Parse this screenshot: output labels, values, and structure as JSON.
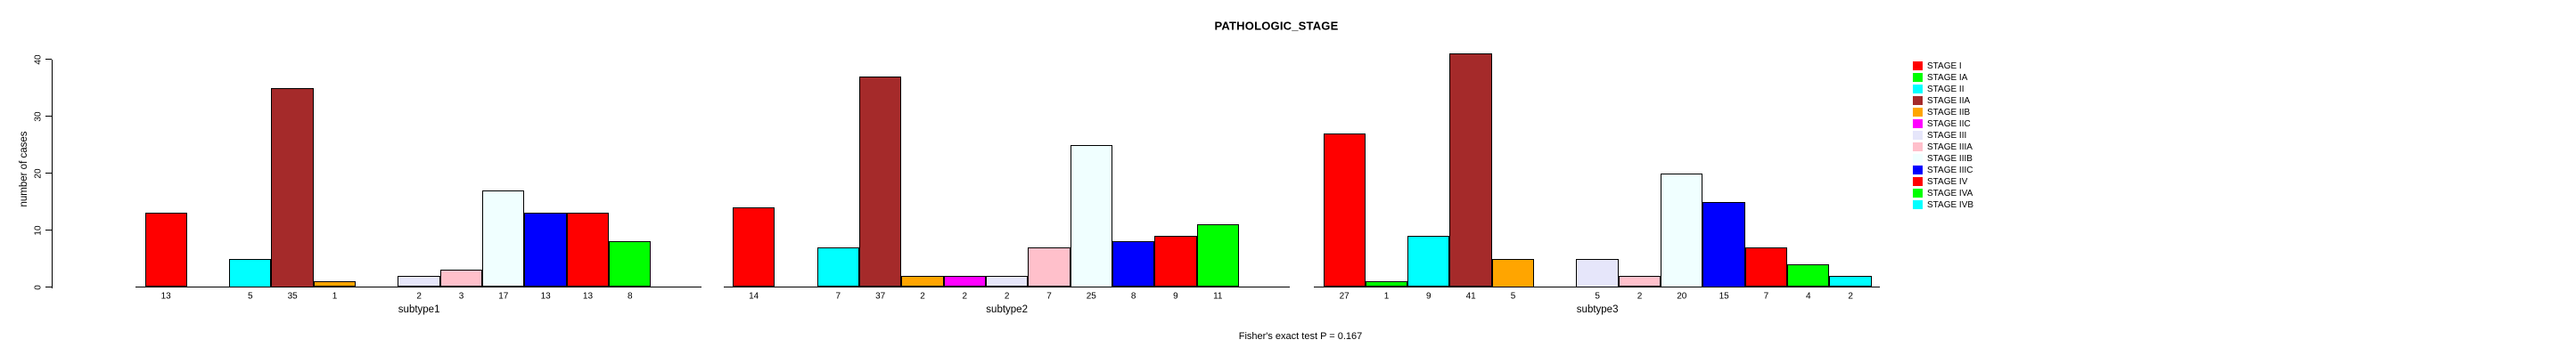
{
  "title": "PATHOLOGIC_STAGE",
  "footer": "Fisher's exact test P = 0.167",
  "y_axis": {
    "label": "number of cases",
    "ticks": [
      0,
      10,
      20,
      30,
      40
    ]
  },
  "chart_data": {
    "type": "bar",
    "title": "PATHOLOGIC_STAGE",
    "xlabel": "",
    "ylabel": "number of cases",
    "ylim": [
      0,
      40
    ],
    "yticks": [
      0,
      10,
      20,
      30,
      40
    ],
    "grid": false,
    "legend_position": "right",
    "annotation": "Fisher's exact test P = 0.167",
    "categories": [
      "STAGE I",
      "STAGE IA",
      "STAGE II",
      "STAGE IIA",
      "STAGE IIB",
      "STAGE IIC",
      "STAGE III",
      "STAGE IIIA",
      "STAGE IIIB",
      "STAGE IIIC",
      "STAGE IV",
      "STAGE IVA",
      "STAGE IVB"
    ],
    "colors": [
      "#FF0000",
      "#00FF00",
      "#00FFFF",
      "#A52A2A",
      "#FFA500",
      "#FF00FF",
      "#E6E6FA",
      "#FFC0CB",
      "#F0FFFF",
      "#0000FF",
      "#FF0000",
      "#00FF00",
      "#00FFFF"
    ],
    "series": [
      {
        "name": "subtype1",
        "values": [
          13,
          0,
          5,
          35,
          1,
          0,
          2,
          3,
          17,
          13,
          13,
          8,
          0
        ]
      },
      {
        "name": "subtype2",
        "values": [
          14,
          0,
          7,
          37,
          2,
          2,
          2,
          7,
          25,
          8,
          9,
          11,
          0
        ]
      },
      {
        "name": "subtype3",
        "values": [
          27,
          1,
          9,
          41,
          5,
          0,
          5,
          2,
          20,
          15,
          7,
          4,
          2
        ]
      }
    ]
  }
}
